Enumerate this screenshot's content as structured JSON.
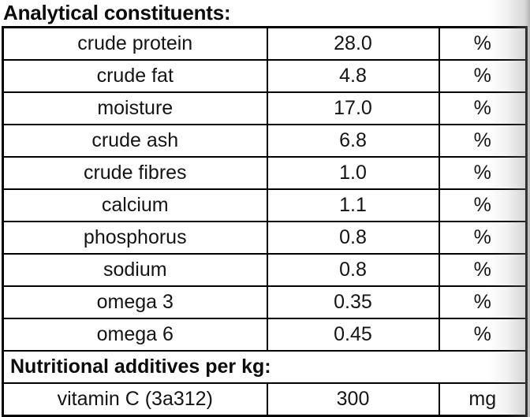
{
  "header": {
    "title": "Analytical constituents:"
  },
  "table": {
    "analytical_rows": [
      {
        "name": "crude protein",
        "value": "28.0",
        "unit": "%"
      },
      {
        "name": "crude fat",
        "value": "4.8",
        "unit": "%"
      },
      {
        "name": "moisture",
        "value": "17.0",
        "unit": "%"
      },
      {
        "name": "crude ash",
        "value": "6.8",
        "unit": "%"
      },
      {
        "name": "crude fibres",
        "value": "1.0",
        "unit": "%"
      },
      {
        "name": "calcium",
        "value": "1.1",
        "unit": "%"
      },
      {
        "name": "phosphorus",
        "value": "0.8",
        "unit": "%"
      },
      {
        "name": "sodium",
        "value": "0.8",
        "unit": "%"
      },
      {
        "name": "omega 3",
        "value": "0.35",
        "unit": "%"
      },
      {
        "name": "omega 6",
        "value": "0.45",
        "unit": "%"
      }
    ],
    "section_header": "Nutritional additives per kg:",
    "additive_rows": [
      {
        "name": "vitamin C (3a312)",
        "value": "300",
        "unit": "mg"
      }
    ]
  },
  "colors": {
    "border": "#000000",
    "text": "#141414",
    "background": "#ffffff",
    "edge_shadow": "#828282"
  }
}
